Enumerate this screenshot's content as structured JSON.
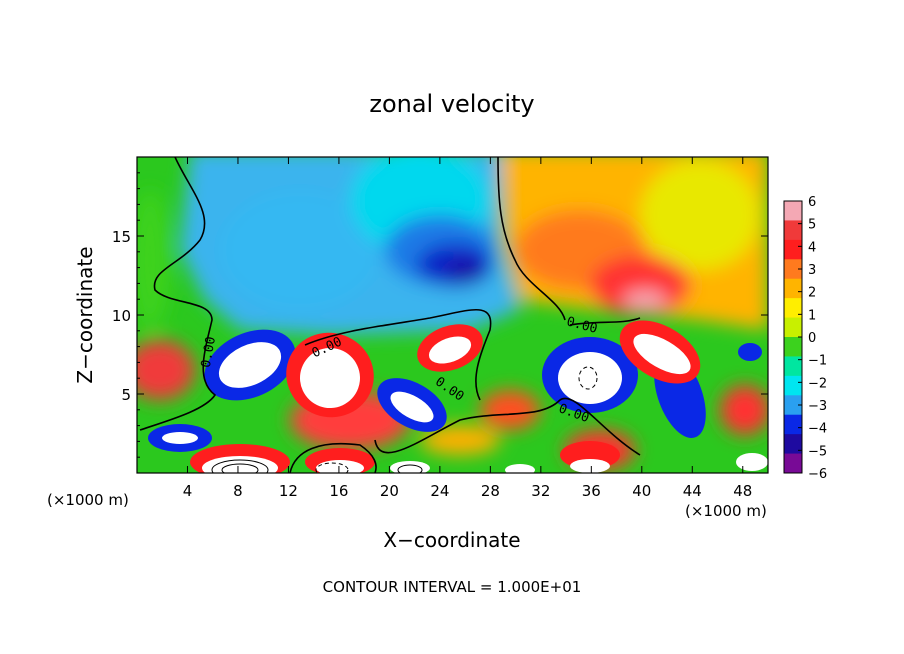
{
  "chart_data": {
    "type": "heatmap",
    "title": "zonal velocity",
    "xlabel": "X−coordinate",
    "ylabel": "Z−coordinate",
    "x_unit_left": "(×1000 m)",
    "x_unit_right": "(×1000 m)",
    "footer": "CONTOUR INTERVAL = 1.000E+01",
    "xlim": [
      0,
      50
    ],
    "ylim": [
      0,
      20
    ],
    "x_ticks": [
      4,
      8,
      12,
      16,
      20,
      24,
      28,
      32,
      36,
      40,
      44,
      48
    ],
    "y_ticks": [
      5,
      10,
      15
    ],
    "contour_labels": [
      "0.00",
      "0.00",
      "0.00",
      "0.00",
      "0.00"
    ],
    "colorbar": {
      "range": [
        -6,
        6
      ],
      "ticks": [
        6,
        5,
        4,
        3,
        2,
        1,
        0,
        -1,
        -2,
        -3,
        -4,
        -5,
        -6
      ],
      "colors": [
        "#f4a8b4",
        "#f03a3a",
        "#ff1e1e",
        "#ff7a1e",
        "#ffb400",
        "#ffee00",
        "#c8f000",
        "#3cd21e",
        "#00e6a0",
        "#00e6f0",
        "#2aa0f0",
        "#0a28e6",
        "#1e0aa0",
        "#780a96"
      ]
    },
    "grid": false,
    "colorbar_placement": "right"
  }
}
